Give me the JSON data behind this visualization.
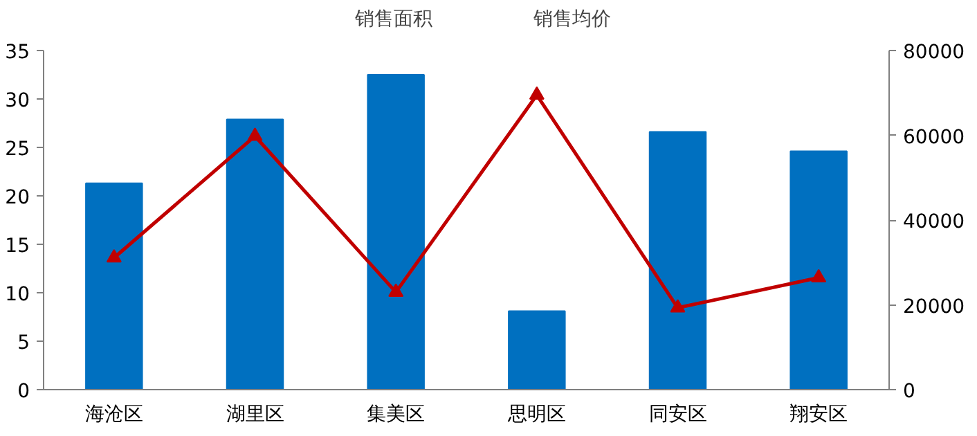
{
  "chart_data": {
    "type": "bar",
    "categories": [
      "海沧区",
      "湖里区",
      "集美区",
      "思明区",
      "同安区",
      "翔安区"
    ],
    "series": [
      {
        "name": "销售面积",
        "color": "#0070c0",
        "values": [
          21.3,
          27.9,
          32.5,
          8.1,
          26.6,
          24.6
        ]
      },
      {
        "name": "销售均价",
        "type": "line",
        "axis": "y2",
        "color": "#c00000",
        "values": [
          31100,
          59800,
          23000,
          69500,
          19300,
          26400
        ]
      }
    ],
    "ylim": [
      0,
      35
    ],
    "yticks": [
      0,
      5,
      10,
      15,
      20,
      25,
      30,
      35
    ],
    "y2lim": [
      0,
      80000
    ],
    "y2ticks": [
      0,
      20000,
      40000,
      60000,
      80000
    ],
    "marker": "triangle",
    "line_style": "solid",
    "grid": false,
    "legend": "top"
  }
}
